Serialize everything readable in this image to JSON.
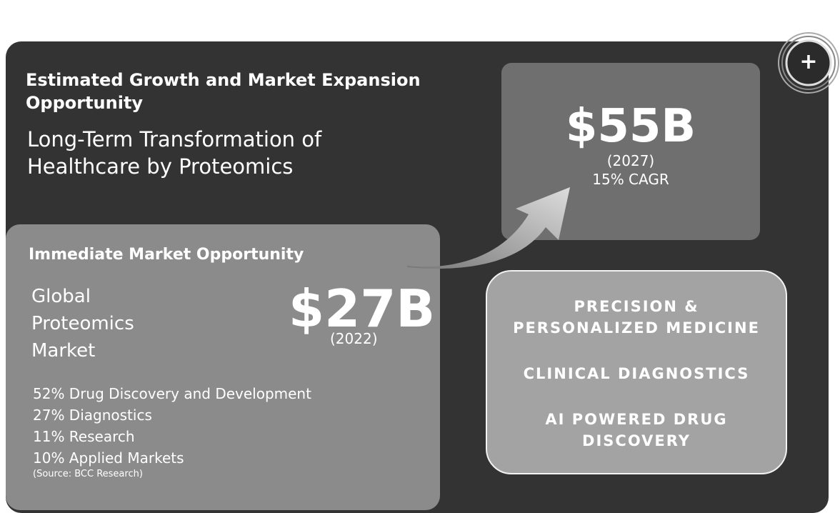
{
  "header": {
    "title": "Estimated Growth and Market Expansion Opportunity",
    "subtitle": "Long-Term Transformation of Healthcare by Proteomics"
  },
  "future": {
    "value": "$55B",
    "year": "(2027)",
    "growth": "15% CAGR"
  },
  "immediate": {
    "title": "Immediate Market Opportunity",
    "label": "Global Proteomics Market",
    "value": "$27B",
    "year": "(2022)",
    "segments": [
      "52% Drug Discovery and Development",
      "27% Diagnostics",
      "11% Research",
      "10% Applied Markets"
    ],
    "source": "(Source: BCC Research)"
  },
  "areas": [
    "PRECISION & PERSONALIZED MEDICINE",
    "CLINICAL DIAGNOSTICS",
    "AI POWERED DRUG DISCOVERY"
  ],
  "button": {
    "label": "+"
  }
}
